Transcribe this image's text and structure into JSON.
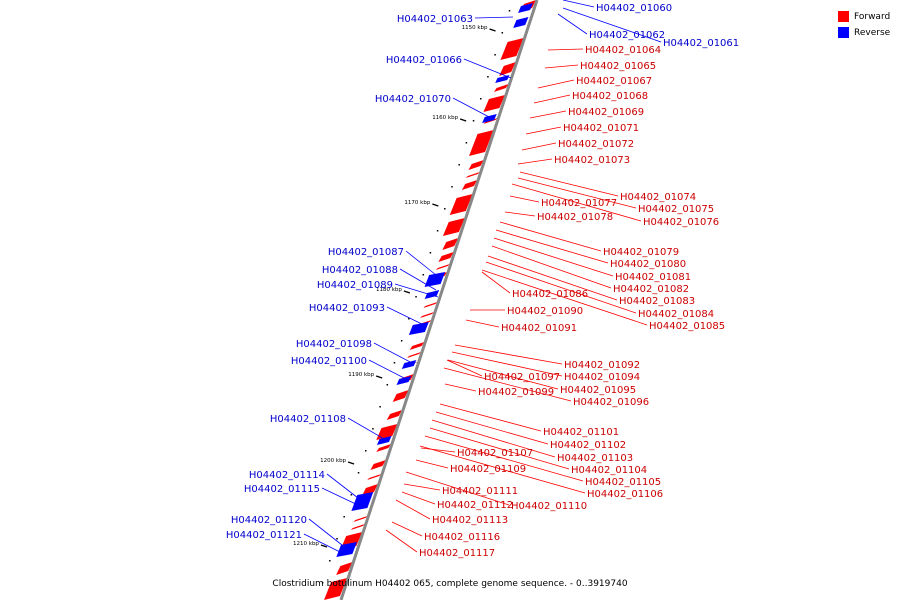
{
  "caption": "Clostridium botulinum H04402 065, complete genome sequence. - 0..3919740",
  "legend": [
    {
      "label": "Forward",
      "color": "#ff0000"
    },
    {
      "label": "Reverse",
      "color": "#0000ff"
    }
  ],
  "colors": {
    "forward": "#ff0000",
    "reverse": "#0000ff",
    "backbone": "#888888"
  },
  "ticks": [
    "1150 kbp",
    "1160 kbp",
    "1170 kbp",
    "1180 kbp",
    "1190 kbp",
    "1200 kbp",
    "1210 kbp"
  ],
  "forward_genes": [
    "H04402_01064",
    "H04402_01065",
    "H04402_01067",
    "H04402_01068",
    "H04402_01069",
    "H04402_01071",
    "H04402_01072",
    "H04402_01073",
    "H04402_01074",
    "H04402_01075",
    "H04402_01076",
    "H04402_01077",
    "H04402_01078",
    "H04402_01079",
    "H04402_01080",
    "H04402_01081",
    "H04402_01082",
    "H04402_01083",
    "H04402_01084",
    "H04402_01085",
    "H04402_01086",
    "H04402_01090",
    "H04402_01091",
    "H04402_01092",
    "H04402_01094",
    "H04402_01095",
    "H04402_01096",
    "H04402_01097",
    "H04402_01099",
    "H04402_01101",
    "H04402_01102",
    "H04402_01103",
    "H04402_01104",
    "H04402_01105",
    "H04402_01106",
    "H04402_01107",
    "H04402_01109",
    "H04402_01110",
    "H04402_01111",
    "H04402_01112",
    "H04402_01113",
    "H04402_01116",
    "H04402_01117"
  ],
  "reverse_genes": [
    "H04402_01060",
    "H04402_01061",
    "H04402_01062",
    "H04402_01063",
    "H04402_01066",
    "H04402_01070",
    "H04402_01087",
    "H04402_01088",
    "H04402_01089",
    "H04402_01093",
    "H04402_01098",
    "H04402_01100",
    "H04402_01108",
    "H04402_01114",
    "H04402_01115",
    "H04402_01120",
    "H04402_01121"
  ]
}
